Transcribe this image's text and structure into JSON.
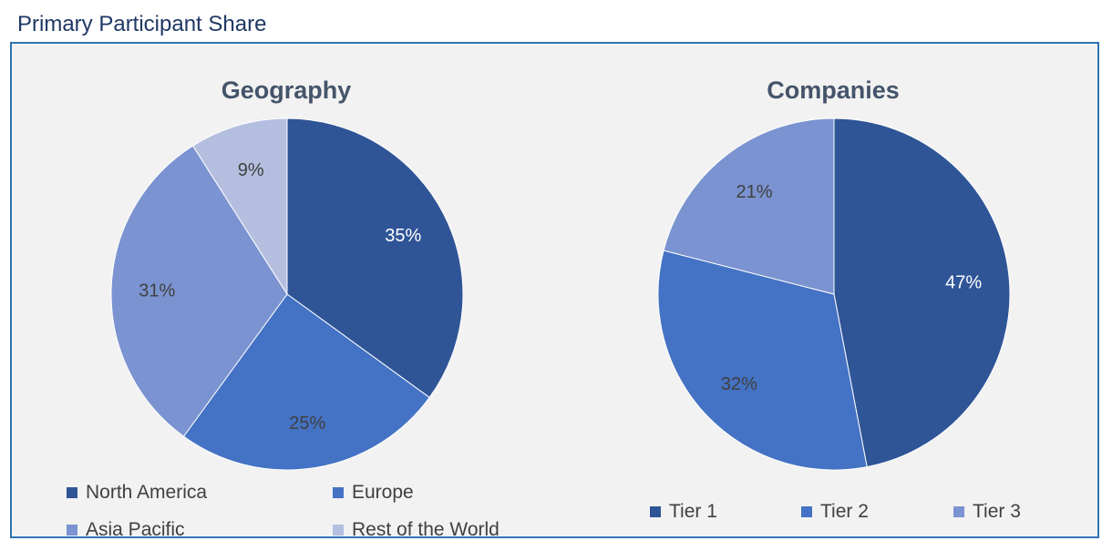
{
  "page": {
    "title": "Primary Participant Share"
  },
  "chart_data": [
    {
      "type": "pie",
      "title": "Geography",
      "slices": [
        {
          "label": "North America",
          "value": 35,
          "display": "35%",
          "color": "#2f5597",
          "label_color": "#ffffff"
        },
        {
          "label": "Europe",
          "value": 25,
          "display": "25%",
          "color": "#4472c4",
          "label_color": "#404040"
        },
        {
          "label": "Asia Pacific",
          "value": 31,
          "display": "31%",
          "color": "#7b93d0",
          "label_color": "#404040"
        },
        {
          "label": "Rest of the World",
          "value": 9,
          "display": "9%",
          "color": "#b4bfe0",
          "label_color": "#404040"
        }
      ],
      "legend_position": "bottom"
    },
    {
      "type": "pie",
      "title": "Companies",
      "slices": [
        {
          "label": "Tier 1",
          "value": 47,
          "display": "47%",
          "color": "#2f5597",
          "label_color": "#ffffff"
        },
        {
          "label": "Tier 2",
          "value": 32,
          "display": "32%",
          "color": "#4472c4",
          "label_color": "#404040"
        },
        {
          "label": "Tier 3",
          "value": 21,
          "display": "21%",
          "color": "#7b93d0",
          "label_color": "#404040"
        }
      ],
      "legend_position": "bottom"
    }
  ]
}
